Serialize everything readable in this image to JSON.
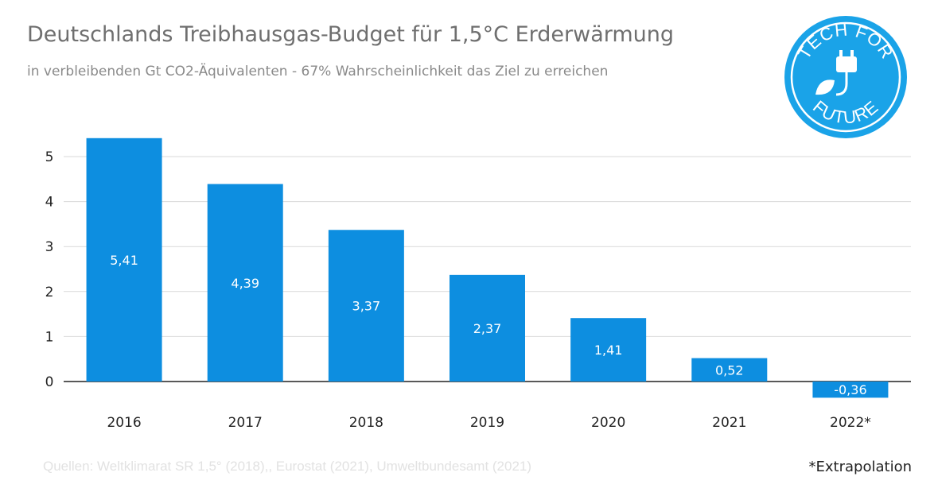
{
  "title": "Deutschlands Treibhausgas-Budget für 1,5°C Erderwärmung",
  "subtitle": "in verbleibenden Gt CO2-Äquivalenten - 67% Wahrscheinlichkeit das Ziel zu erreichen",
  "logo": {
    "top_text": "TECH FOR",
    "bottom_text": "FUTURE",
    "icon": "plug-leaf-icon",
    "color": "#1aa3e8"
  },
  "source": "Quellen: Weltklimarat SR 1,5° (2018),, Eurostat (2021), Umweltbundesamt (2021)",
  "footnote": "*Extrapolation",
  "colors": {
    "bar": "#0d8ee0",
    "grid": "#d9d9d9",
    "axis": "#222222",
    "label": "#ffffff"
  },
  "chart_data": {
    "type": "bar",
    "categories": [
      "2016",
      "2017",
      "2018",
      "2019",
      "2020",
      "2021",
      "2022*"
    ],
    "values": [
      5.41,
      4.39,
      3.37,
      2.37,
      1.41,
      0.52,
      -0.36
    ],
    "data_labels": [
      "5,41",
      "4,39",
      "3,37",
      "2,37",
      "1,41",
      "0,52",
      "-0,36"
    ],
    "yticks": [
      "0",
      "1",
      "2",
      "3",
      "4",
      "5"
    ],
    "ylim": [
      -0.36,
      5.5
    ],
    "grid": true,
    "legend": "none"
  }
}
